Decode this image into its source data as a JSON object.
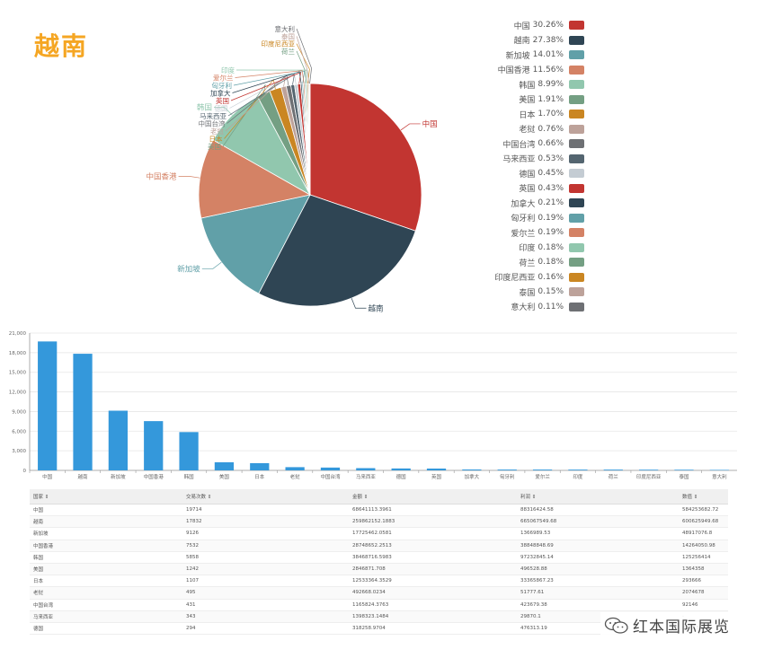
{
  "title": "越南",
  "chart_data": [
    {
      "type": "pie",
      "labels": [
        "中国",
        "越南",
        "新加坡",
        "中国香港",
        "韩国",
        "美国",
        "日本",
        "老挝",
        "中国台湾",
        "马来西亚",
        "德国",
        "英国",
        "加拿大",
        "匈牙利",
        "爱尔兰",
        "印度",
        "荷兰",
        "印度尼西亚",
        "泰国",
        "意大利"
      ],
      "values": [
        30.26,
        27.38,
        14.01,
        11.56,
        8.99,
        1.91,
        1.7,
        0.76,
        0.66,
        0.53,
        0.45,
        0.43,
        0.21,
        0.19,
        0.19,
        0.18,
        0.18,
        0.16,
        0.15,
        0.11
      ],
      "percent_labels": [
        "30.26%",
        "27.38%",
        "14.01%",
        "11.56%",
        "8.99%",
        "1.91%",
        "1.70%",
        "0.76%",
        "0.66%",
        "0.53%",
        "0.45%",
        "0.43%",
        "0.21%",
        "0.19%",
        "0.19%",
        "0.18%",
        "0.18%",
        "0.16%",
        "0.15%",
        "0.11%"
      ],
      "colors": [
        "#c23531",
        "#2f4554",
        "#61a0a8",
        "#d48265",
        "#91c7ae",
        "#749f83",
        "#ca8622",
        "#bda29a",
        "#6e7074",
        "#546570",
        "#c4ccd3",
        "#c23531",
        "#2f4554",
        "#61a0a8",
        "#d48265",
        "#91c7ae",
        "#749f83",
        "#ca8622",
        "#bda29a",
        "#6e7074"
      ],
      "legend_position": "right"
    },
    {
      "type": "bar",
      "categories": [
        "中国",
        "越南",
        "新加坡",
        "中国香港",
        "韩国",
        "美国",
        "日本",
        "老挝",
        "中国台湾",
        "马来西亚",
        "德国",
        "英国",
        "加拿大",
        "匈牙利",
        "爱尔兰",
        "印度",
        "荷兰",
        "印度尼西亚",
        "泰国",
        "意大利"
      ],
      "values": [
        19714,
        17832,
        9126,
        7532,
        5858,
        1242,
        1107,
        495,
        431,
        343,
        294,
        280,
        137,
        124,
        124,
        117,
        117,
        104,
        98,
        72
      ],
      "ylim": [
        0,
        21000
      ],
      "yticks": [
        "0",
        "3,000",
        "6,000",
        "9,000",
        "12,000",
        "15,000",
        "18,000",
        "21,000"
      ],
      "color": "#3498db",
      "grid": true
    }
  ],
  "table": {
    "headers": [
      "国家 ⇕",
      "交易次数 ⇕",
      "金额 ⇕",
      "利润 ⇕",
      "数值 ⇕"
    ],
    "rows": [
      [
        "中国",
        "19714",
        "68641113.3961",
        "88316424.58",
        "584253682.72"
      ],
      [
        "越南",
        "17832",
        "259862152.1883",
        "665067549.68",
        "600625949.68"
      ],
      [
        "新加坡",
        "9126",
        "17725462.0581",
        "1366989.53",
        "48917076.8"
      ],
      [
        "中国香港",
        "7532",
        "28748652.2513",
        "38848848.69",
        "14264050.98"
      ],
      [
        "韩国",
        "5858",
        "38468716.5983",
        "97232845.14",
        "125256414"
      ],
      [
        "美国",
        "1242",
        "2846871.708",
        "496528.88",
        "1364358"
      ],
      [
        "日本",
        "1107",
        "12533364.3529",
        "33365867.23",
        "293666"
      ],
      [
        "老挝",
        "495",
        "492668.0234",
        "51777.61",
        "2074678"
      ],
      [
        "中国台湾",
        "431",
        "1165824.3763",
        "423679.38",
        "92146"
      ],
      [
        "马来西亚",
        "343",
        "1398323.1484",
        "29870.1",
        "-"
      ],
      [
        "德国",
        "294",
        "318258.9704",
        "476313.19",
        "8487.5"
      ]
    ]
  },
  "watermark": {
    "text": "红本国际展览",
    "icon": "wechat-icon"
  }
}
